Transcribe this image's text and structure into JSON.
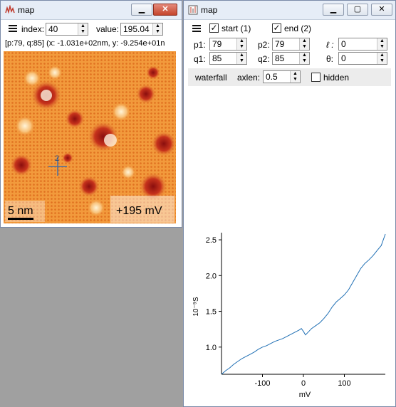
{
  "left_window": {
    "title": "map",
    "index_label": "index:",
    "index_value": "40",
    "value_label": "value:",
    "value_value": "195.04",
    "coord_text": "[p:79, q:85]   (x: -1.031e+02nm, y: -9.254e+01n",
    "scale_bar_label": "5 nm",
    "bias_label": "+195 mV",
    "marker_label": "2"
  },
  "right_window": {
    "title": "map",
    "start_label": "start (1)",
    "end_label": "end (2)",
    "p1_label": "p1:",
    "p1_value": "79",
    "p2_label": "p2:",
    "p2_value": "79",
    "l_label": "ℓ :",
    "l_value": "0",
    "q1_label": "q1:",
    "q1_value": "85",
    "q2_label": "q2:",
    "q2_value": "85",
    "theta_label": "θ:",
    "theta_value": "0",
    "waterfall_label": "waterfall",
    "axlen_label": "axlen:",
    "axlen_value": "0.5",
    "hidden_label": "hidden"
  },
  "colors": {
    "line": "#1f6fb4",
    "map_base": "#f08a2a"
  },
  "chart_data": {
    "type": "line",
    "xlabel": "mV",
    "ylabel": "10⁻⁹S",
    "xlim": [
      -200,
      200
    ],
    "ylim": [
      0.62,
      2.6
    ],
    "xticks": [
      -100,
      0,
      100
    ],
    "yticks": [
      1.0,
      1.5,
      2.0,
      2.5
    ],
    "x": [
      -200,
      -190,
      -180,
      -170,
      -160,
      -150,
      -140,
      -130,
      -120,
      -110,
      -100,
      -90,
      -80,
      -70,
      -60,
      -50,
      -40,
      -30,
      -20,
      -10,
      -5,
      0,
      5,
      10,
      20,
      30,
      40,
      50,
      60,
      70,
      80,
      90,
      100,
      110,
      120,
      130,
      140,
      150,
      160,
      170,
      180,
      190,
      200
    ],
    "y": [
      0.62,
      0.67,
      0.71,
      0.76,
      0.8,
      0.84,
      0.87,
      0.9,
      0.93,
      0.97,
      1.0,
      1.02,
      1.05,
      1.08,
      1.1,
      1.12,
      1.15,
      1.18,
      1.21,
      1.24,
      1.26,
      1.22,
      1.17,
      1.2,
      1.26,
      1.3,
      1.34,
      1.4,
      1.47,
      1.56,
      1.63,
      1.68,
      1.73,
      1.8,
      1.9,
      2.0,
      2.1,
      2.17,
      2.22,
      2.28,
      2.35,
      2.42,
      2.58
    ]
  }
}
